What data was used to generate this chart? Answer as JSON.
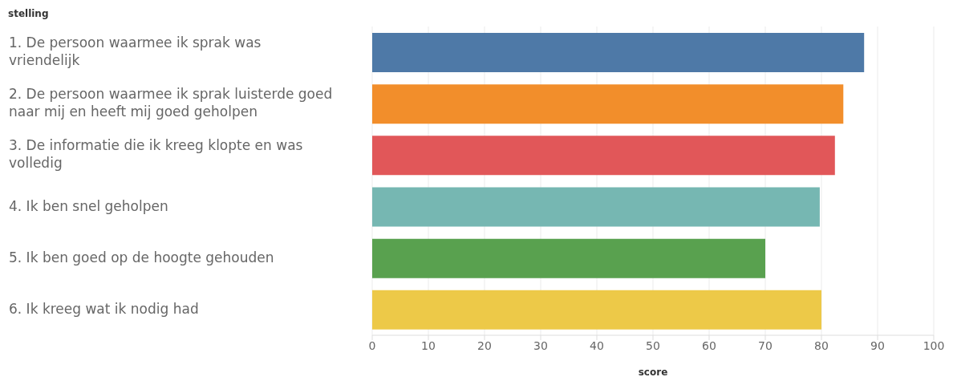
{
  "chart_data": {
    "type": "bar",
    "orientation": "horizontal",
    "ylabel": "stelling",
    "xlabel": "score",
    "categories": [
      "1. De persoon waarmee ik sprak was vriendelijk",
      "2. De persoon waarmee ik sprak luisterde goed naar mij en heeft mij goed geholpen",
      "3. De informatie die ik kreeg klopte en was volledig",
      "4. Ik ben snel geholpen",
      "5. Ik ben goed op de hoogte gehouden",
      "6. Ik kreeg wat ik nodig had"
    ],
    "values": [
      87.6,
      83.9,
      82.4,
      79.7,
      70,
      80
    ],
    "colors": [
      "#4e79a7",
      "#f28e2b",
      "#e15759",
      "#76b7b2",
      "#59a14f",
      "#edc948"
    ],
    "xlim": [
      0,
      100
    ],
    "xticks": [
      0,
      10,
      20,
      30,
      40,
      50,
      60,
      70,
      80,
      90,
      100
    ],
    "grid": "x",
    "legend": false
  }
}
